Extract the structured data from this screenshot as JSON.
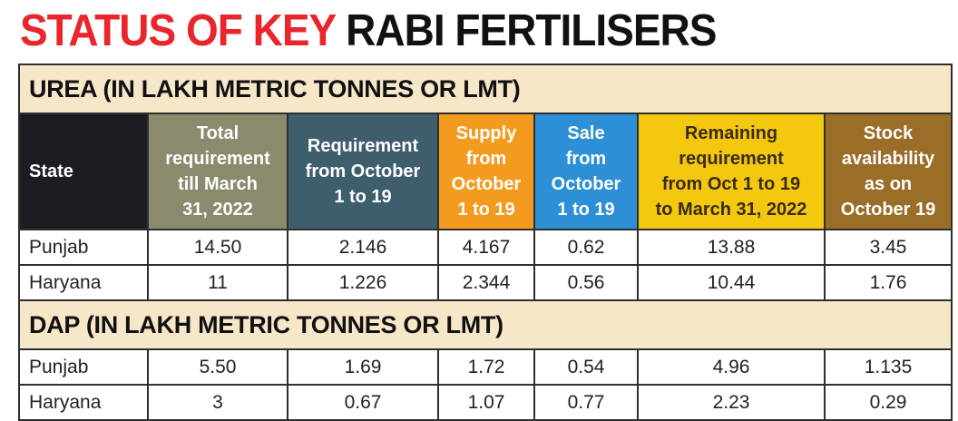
{
  "headline": {
    "part1": "STATUS OF KEY",
    "part2": "RABI FERTILISERS"
  },
  "colors": {
    "headline_red": "#e8262b",
    "section_bg": "#f7e7c9",
    "state_header": "#1e1c22",
    "total_requirement": "#8b8a6c",
    "requirement_from_oct": "#3f5e6d",
    "supply": "#f29b1f",
    "sale": "#2d8fd6",
    "remaining": "#f3c80f",
    "stock": "#9a6d29"
  },
  "urea": {
    "title": "UREA (IN LAKH METRIC TONNES OR LMT)",
    "headers": {
      "state": "State",
      "total": [
        "Total",
        "requirement",
        "till March",
        "31, 2022"
      ],
      "req": [
        "Requirement",
        "from October",
        "1 to 19"
      ],
      "supply": [
        "Supply",
        "from",
        "October",
        "1 to 19"
      ],
      "sale": [
        "Sale",
        "from",
        "October",
        "1 to 19"
      ],
      "remain": [
        "Remaining",
        "requirement",
        "from Oct 1 to 19",
        "to March 31, 2022"
      ],
      "stock": [
        "Stock",
        "availability",
        "as on",
        "October 19"
      ]
    },
    "rows": [
      [
        "Punjab",
        "14.50",
        "2.146",
        "4.167",
        "0.62",
        "13.88",
        "3.45"
      ],
      [
        "Haryana",
        "11",
        "1.226",
        "2.344",
        "0.56",
        "10.44",
        "1.76"
      ]
    ]
  },
  "dap": {
    "title": "DAP (IN LAKH METRIC TONNES OR LMT)",
    "rows": [
      [
        "Punjab",
        "5.50",
        "1.69",
        "1.72",
        "0.54",
        "4.96",
        "1.135"
      ],
      [
        "Haryana",
        "3",
        "0.67",
        "1.07",
        "0.77",
        "2.23",
        "0.29"
      ]
    ]
  }
}
